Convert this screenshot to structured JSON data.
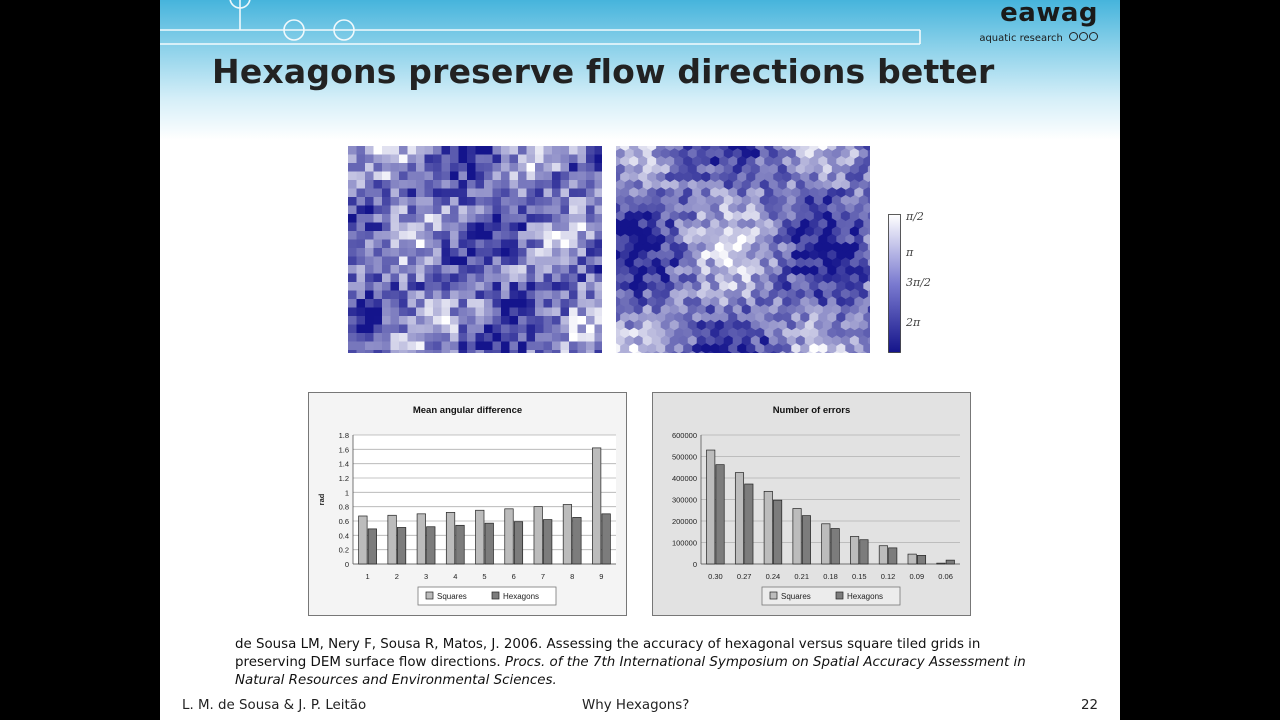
{
  "slide": {
    "title": "Hexagons preserve flow directions better",
    "logo": {
      "word": "eawag",
      "subtitle": "aquatic research"
    },
    "colorbar_labels": [
      "π/2",
      "π",
      "3π/2",
      "2π"
    ],
    "colors": {
      "dark_blue": "#1e1e96",
      "light": "#ffffff",
      "header": "#46b4dc"
    },
    "citation": {
      "plain": "de Sousa LM, Nery F, Sousa R, Matos, J. 2006. Assessing the accuracy of hexagonal versus square tiled grids in preserving DEM surface flow directions. ",
      "italic": "Procs. of the 7th International Symposium on Spatial Accuracy Assessment in Natural Resources and Environmental Sciences."
    },
    "footer": {
      "authors": "L. M. de Sousa & J. P. Leitão",
      "section": "Why Hexagons?",
      "page": "22"
    }
  },
  "chart_data": [
    {
      "type": "bar",
      "title": "Mean angular difference",
      "ylabel": "rad",
      "xlabel": "",
      "categories": [
        "1",
        "2",
        "3",
        "4",
        "5",
        "6",
        "7",
        "8",
        "9"
      ],
      "series": [
        {
          "name": "Squares",
          "values": [
            0.67,
            0.68,
            0.7,
            0.72,
            0.75,
            0.77,
            0.8,
            0.83,
            1.62
          ]
        },
        {
          "name": "Hexagons",
          "values": [
            0.49,
            0.51,
            0.52,
            0.54,
            0.57,
            0.59,
            0.62,
            0.65,
            0.7
          ]
        }
      ],
      "ylim": [
        0,
        1.8
      ],
      "yticks": [
        "0",
        "0.2",
        "0.4",
        "0.6",
        "0.8",
        "1",
        "1.2",
        "1.4",
        "1.6",
        "1.8"
      ],
      "grid": true,
      "legend": "bottom"
    },
    {
      "type": "bar",
      "title": "Number of errors",
      "ylabel": "",
      "xlabel": "",
      "categories": [
        "0.30",
        "0.27",
        "0.24",
        "0.21",
        "0.18",
        "0.15",
        "0.12",
        "0.09",
        "0.06"
      ],
      "series": [
        {
          "name": "Squares",
          "values": [
            530000,
            425000,
            338000,
            258000,
            187000,
            128000,
            85000,
            46000,
            4000
          ]
        },
        {
          "name": "Hexagons",
          "values": [
            462000,
            372000,
            297000,
            225000,
            165000,
            113000,
            75000,
            40000,
            18000
          ]
        }
      ],
      "ylim": [
        0,
        600000
      ],
      "yticks": [
        "0",
        "100000",
        "200000",
        "300000",
        "400000",
        "500000",
        "600000"
      ],
      "grid": true,
      "legend": "bottom"
    }
  ]
}
